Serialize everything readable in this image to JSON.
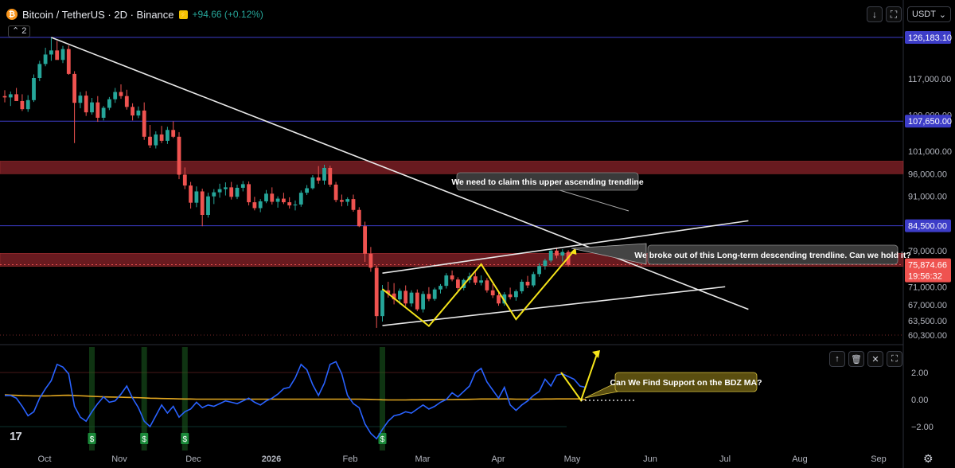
{
  "header": {
    "coin_glyph": "₿",
    "title": "Bitcoin / TetherUS · 2D · Binance",
    "change": "+94.66 (+0.12%)",
    "indicator_count": "2",
    "currency": "USDT"
  },
  "colors": {
    "up": "#26a69a",
    "down": "#ef5350",
    "zone": "#7a1f25",
    "hline": "#3d3dc8",
    "trend": "#e8e8e8",
    "pattern": "#f5e41a",
    "indicator": "#2962ff",
    "ma": "#e2a720",
    "price_tag": "#ef5350"
  },
  "chart_data": {
    "type": "candlestick",
    "price_axis": {
      "ticks": [
        "117,000.00",
        "109,000.00",
        "101,000.00",
        "96,000.00",
        "91,000.00",
        "79,000.00",
        "71,000.00",
        "67,000.00",
        "63,500.00",
        "60,300.00"
      ]
    },
    "horizontal_levels": [
      {
        "value": 126183.1,
        "label": "126,183.10"
      },
      {
        "value": 107650.0,
        "label": "107,650.00"
      },
      {
        "value": 84500.0,
        "label": "84,500.00"
      }
    ],
    "last_price": {
      "label": "75,874.66",
      "countdown": "19:56:32",
      "value": 75874.66
    },
    "zones": [
      {
        "from": 96000,
        "to": 98800
      },
      {
        "from": 75500,
        "to": 78400
      }
    ],
    "time_axis": [
      "Oct",
      "Nov",
      "Dec",
      "2026",
      "Feb",
      "Mar",
      "Apr",
      "May",
      "Jun",
      "Jul",
      "Aug",
      "Sep"
    ],
    "ohlc": [
      [
        113200,
        114500,
        111800,
        112900
      ],
      [
        112900,
        114200,
        111000,
        113600
      ],
      [
        113600,
        115000,
        112500,
        112100
      ],
      [
        112100,
        113600,
        109900,
        110300
      ],
      [
        110300,
        113400,
        109700,
        112300
      ],
      [
        112300,
        118000,
        111900,
        117200
      ],
      [
        117200,
        121000,
        116500,
        120300
      ],
      [
        120300,
        123900,
        119800,
        122400
      ],
      [
        122400,
        126183,
        121000,
        123300
      ],
      [
        123300,
        125400,
        121700,
        121200
      ],
      [
        121200,
        124300,
        120500,
        123600
      ],
      [
        123600,
        124400,
        117900,
        118100
      ],
      [
        118100,
        118700,
        102800,
        111700
      ],
      [
        111700,
        114100,
        110500,
        113300
      ],
      [
        113300,
        114300,
        108800,
        109600
      ],
      [
        109600,
        112800,
        109100,
        111800
      ],
      [
        111800,
        113200,
        107500,
        108400
      ],
      [
        108400,
        111000,
        107800,
        110600
      ],
      [
        110600,
        113000,
        110100,
        112500
      ],
      [
        112500,
        115000,
        111700,
        114100
      ],
      [
        114100,
        115800,
        112600,
        113200
      ],
      [
        113200,
        114600,
        110200,
        110800
      ],
      [
        110800,
        111600,
        107800,
        108900
      ],
      [
        108900,
        110900,
        108300,
        110000
      ],
      [
        110000,
        111800,
        103500,
        104200
      ],
      [
        104200,
        106800,
        101700,
        102300
      ],
      [
        102300,
        105400,
        101600,
        104700
      ],
      [
        104700,
        106600,
        102800,
        103300
      ],
      [
        103300,
        106400,
        102600,
        105700
      ],
      [
        105700,
        107600,
        103900,
        104200
      ],
      [
        104200,
        105200,
        94800,
        95800
      ],
      [
        95800,
        97400,
        92600,
        93400
      ],
      [
        93400,
        94200,
        88300,
        89600
      ],
      [
        89600,
        93200,
        88600,
        92100
      ],
      [
        92100,
        92700,
        84400,
        86900
      ],
      [
        86900,
        91800,
        86300,
        91000
      ],
      [
        91000,
        92600,
        89300,
        91900
      ],
      [
        91900,
        93800,
        90700,
        92600
      ],
      [
        92600,
        94100,
        91200,
        93000
      ],
      [
        93000,
        94200,
        90300,
        90900
      ],
      [
        90900,
        93600,
        90400,
        92900
      ],
      [
        92900,
        94400,
        92100,
        93700
      ],
      [
        93700,
        94300,
        89000,
        89700
      ],
      [
        89700,
        90900,
        87900,
        88400
      ],
      [
        88400,
        90400,
        87500,
        89900
      ],
      [
        89900,
        92400,
        89500,
        91600
      ],
      [
        91600,
        93000,
        89200,
        89800
      ],
      [
        89800,
        91000,
        88500,
        90500
      ],
      [
        90500,
        91800,
        89300,
        89700
      ],
      [
        89700,
        90800,
        88300,
        89000
      ],
      [
        89000,
        90100,
        87900,
        89200
      ],
      [
        89200,
        92300,
        88700,
        91800
      ],
      [
        91800,
        93500,
        91300,
        92800
      ],
      [
        92800,
        95700,
        92500,
        95200
      ],
      [
        95200,
        97700,
        93800,
        94500
      ],
      [
        94500,
        98000,
        93600,
        97300
      ],
      [
        97300,
        97800,
        93100,
        93600
      ],
      [
        93600,
        94200,
        89700,
        90200
      ],
      [
        90200,
        91400,
        88800,
        89800
      ],
      [
        89800,
        90800,
        88900,
        90400
      ],
      [
        90400,
        91400,
        87600,
        88000
      ],
      [
        88000,
        88600,
        84200,
        84400
      ],
      [
        84400,
        85400,
        76500,
        78300
      ],
      [
        78300,
        79800,
        74300,
        75200
      ],
      [
        75200,
        75700,
        61900,
        64500
      ],
      [
        64500,
        71400,
        63300,
        70200
      ],
      [
        70200,
        72100,
        68600,
        69500
      ],
      [
        69500,
        71800,
        67100,
        68200
      ],
      [
        68200,
        70600,
        67100,
        70100
      ],
      [
        70100,
        71300,
        66700,
        67300
      ],
      [
        67300,
        70200,
        66600,
        69700
      ],
      [
        69700,
        70400,
        65600,
        66000
      ],
      [
        66000,
        70000,
        65300,
        69400
      ],
      [
        69400,
        70900,
        67800,
        68300
      ],
      [
        68300,
        70800,
        67900,
        70400
      ],
      [
        70400,
        71600,
        69500,
        71200
      ],
      [
        71200,
        74000,
        70600,
        73500
      ],
      [
        73500,
        74600,
        72200,
        72600
      ],
      [
        72600,
        73100,
        70000,
        70700
      ],
      [
        70700,
        72800,
        70200,
        72500
      ],
      [
        72500,
        74100,
        71800,
        73300
      ],
      [
        73300,
        74400,
        71400,
        71900
      ],
      [
        71900,
        73500,
        71300,
        72400
      ],
      [
        72400,
        72900,
        69700,
        70200
      ],
      [
        70200,
        71600,
        68500,
        69100
      ],
      [
        69100,
        69700,
        66800,
        67300
      ],
      [
        67300,
        69800,
        66800,
        69300
      ],
      [
        69300,
        70800,
        68200,
        68700
      ],
      [
        68700,
        70400,
        67900,
        70000
      ],
      [
        70000,
        72600,
        69500,
        72100
      ],
      [
        72100,
        73400,
        70700,
        71300
      ],
      [
        71300,
        74300,
        70900,
        73800
      ],
      [
        73800,
        76200,
        73200,
        75600
      ],
      [
        75600,
        77200,
        74800,
        76800
      ],
      [
        76800,
        79400,
        76400,
        79000
      ],
      [
        79000,
        79700,
        77300,
        77900
      ],
      [
        77900,
        79300,
        76600,
        78700
      ],
      [
        78700,
        79100,
        75500,
        75870
      ]
    ],
    "trendlines": [
      {
        "name": "long-term-descending",
        "points": [
          [
            8,
            126183
          ],
          [
            128,
            66000
          ]
        ]
      },
      {
        "name": "channel-upper",
        "points": [
          [
            65,
            74000
          ],
          [
            128,
            85600
          ]
        ]
      },
      {
        "name": "channel-lower",
        "points": [
          [
            65,
            62400
          ],
          [
            124,
            71000
          ]
        ]
      }
    ],
    "pattern": [
      [
        65,
        70500
      ],
      [
        73,
        62300
      ],
      [
        82,
        76000
      ],
      [
        88,
        63800
      ],
      [
        98,
        79000
      ]
    ],
    "annotations": [
      {
        "text": "We need to claim this upper ascending trendline"
      },
      {
        "text": "We broke out of this Long-term descending trendline. Can we hold it?"
      },
      {
        "text": "Can We Find Support on the BDZ MA?"
      }
    ],
    "indicator": {
      "axis_ticks": [
        "2.00",
        "0.00",
        "−2.00"
      ],
      "signal_marker": "$",
      "signals": [
        15,
        24,
        31,
        65
      ],
      "values": [
        0.3,
        0.3,
        0.1,
        -0.5,
        -1.2,
        -0.9,
        0.1,
        0.8,
        1.4,
        2.6,
        2.4,
        1.9,
        -0.5,
        -1.3,
        -1.6,
        -0.9,
        -0.3,
        0.2,
        -0.2,
        -0.1,
        0.4,
        1.0,
        0.1,
        -0.6,
        -1.6,
        -2.0,
        -1.2,
        -0.4,
        -1.0,
        -0.5,
        -1.3,
        -0.9,
        -0.7,
        -0.2,
        -0.6,
        -0.4,
        -0.5,
        -0.3,
        -0.1,
        -0.2,
        -0.3,
        -0.1,
        0.1,
        -0.2,
        -0.4,
        -0.1,
        0.1,
        0.4,
        0.8,
        0.9,
        1.6,
        2.6,
        2.2,
        1.1,
        0.3,
        1.2,
        2.6,
        2.8,
        1.9,
        0.3,
        -0.3,
        -0.6,
        -1.8,
        -2.5,
        -2.9,
        -2.2,
        -1.6,
        -1.2,
        -1.1,
        -0.9,
        -1.0,
        -0.7,
        -0.4,
        -0.7,
        -0.5,
        -0.2,
        0.0,
        0.5,
        0.2,
        0.6,
        1.0,
        2.0,
        2.3,
        1.3,
        0.7,
        0.1,
        0.9,
        -0.4,
        -0.8,
        -0.4,
        -0.1,
        0.3,
        0.6,
        1.5,
        1.0,
        1.8,
        1.9,
        1.7,
        1.5,
        1.0,
        0.9
      ],
      "ma": [
        0.35,
        0.33,
        0.31,
        0.29,
        0.28,
        0.27,
        0.27,
        0.27,
        0.28,
        0.3,
        0.31,
        0.32,
        0.3,
        0.28,
        0.26,
        0.24,
        0.22,
        0.2,
        0.19,
        0.18,
        0.17,
        0.16,
        0.15,
        0.14,
        0.12,
        0.1,
        0.09,
        0.08,
        0.07,
        0.06,
        0.05,
        0.04,
        0.04,
        0.03,
        0.03,
        0.03,
        0.03,
        0.03,
        0.03,
        0.03,
        0.03,
        0.03,
        0.03,
        0.03,
        0.03,
        0.03,
        0.03,
        0.03,
        0.03,
        0.03,
        0.03,
        0.03,
        0.03,
        0.03,
        0.03,
        0.03,
        0.03,
        0.03,
        0.03,
        0.03,
        0.03,
        0.03,
        0.02,
        0.01,
        0.0,
        -0.02,
        -0.03,
        -0.03,
        -0.03,
        -0.03,
        -0.02,
        -0.02,
        -0.01,
        -0.01,
        -0.01,
        0.0,
        0.0,
        0.0,
        0.01,
        0.01,
        0.02,
        0.03,
        0.04,
        0.04,
        0.04,
        0.04,
        0.05,
        0.04,
        0.03,
        0.03,
        0.03,
        0.03,
        0.03,
        0.04,
        0.04,
        0.05,
        0.05,
        0.05,
        0.05,
        0.05,
        0.0
      ]
    }
  },
  "toolbar": {
    "download_icon": "↓",
    "fullscreen_icon": "⛶"
  },
  "indicator_toolbar": {
    "up_icon": "↑",
    "delete_icon": "🗑",
    "collapse_icon": "✕",
    "maximize_icon": "⛶"
  },
  "logo": "17",
  "settings_icon": "⚙"
}
